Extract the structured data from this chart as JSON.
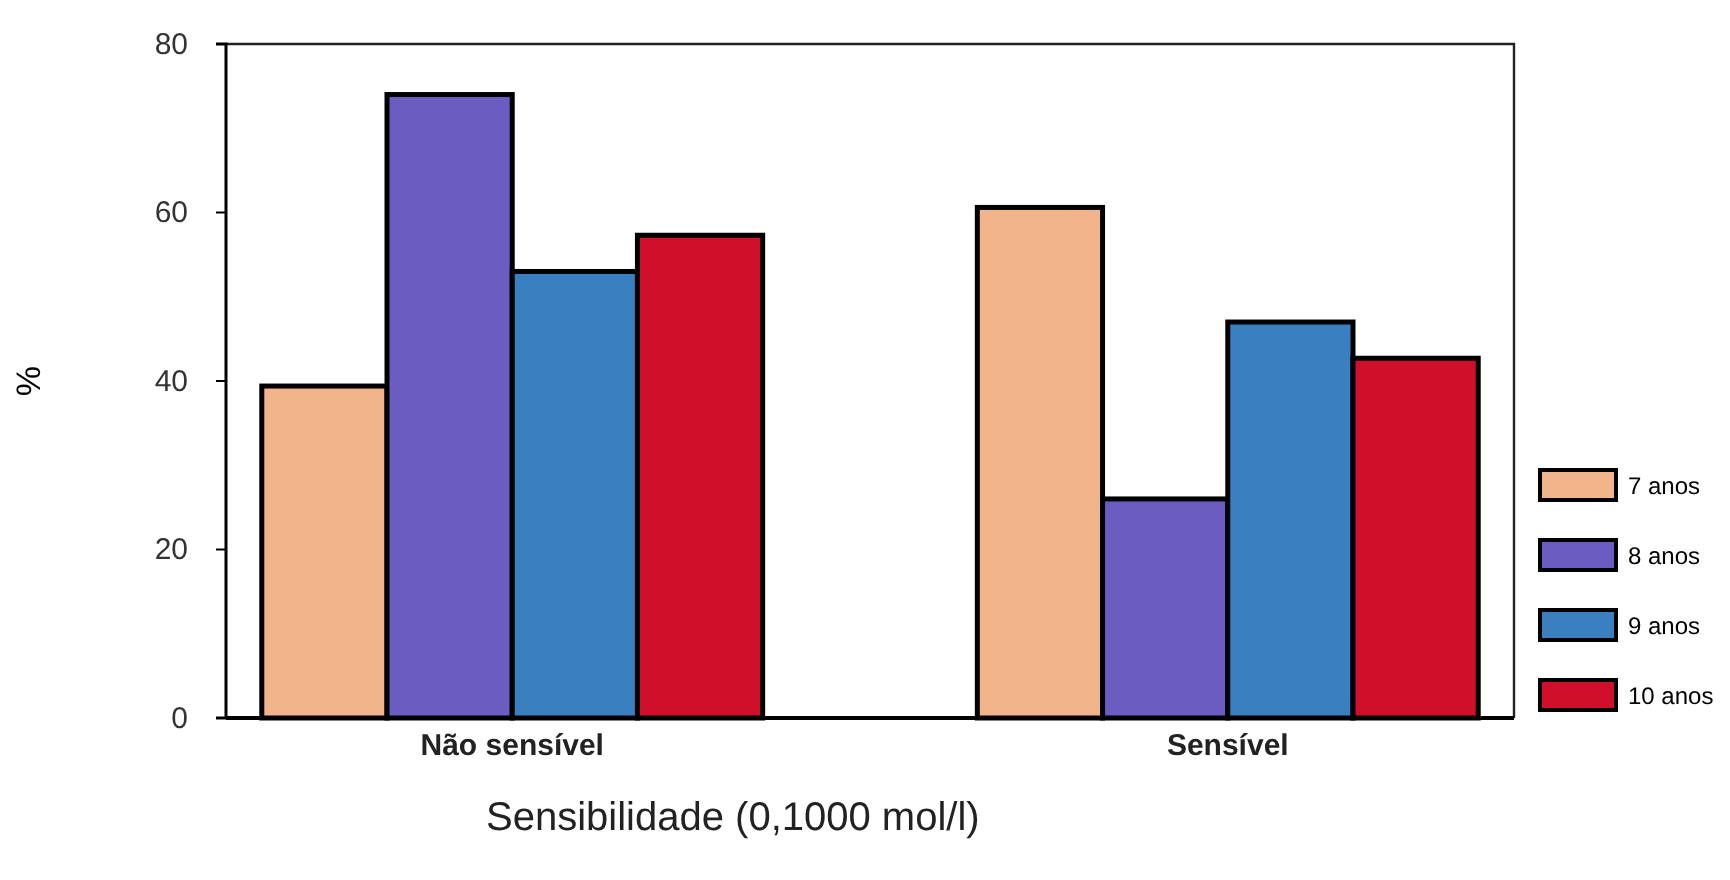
{
  "chart_data": {
    "type": "bar",
    "xlabel": "Sensibilidade (0,1000 mol/l)",
    "ylabel": "%",
    "categories": [
      "Não sensível",
      "Sensível"
    ],
    "series": [
      {
        "name": "7 anos",
        "color": "#f2b48a",
        "values": [
          39.4,
          60.6
        ]
      },
      {
        "name": "8 anos",
        "color": "#6a5cc0",
        "values": [
          74,
          26
        ]
      },
      {
        "name": "9 anos",
        "color": "#3a7fc0",
        "values": [
          53,
          47
        ]
      },
      {
        "name": "10 anos",
        "color": "#d0102a",
        "values": [
          57.3,
          42.7
        ]
      }
    ],
    "ylim": [
      0,
      80
    ],
    "yticks": [
      0,
      20,
      40,
      60,
      80
    ],
    "grid": false,
    "legend": "right"
  }
}
